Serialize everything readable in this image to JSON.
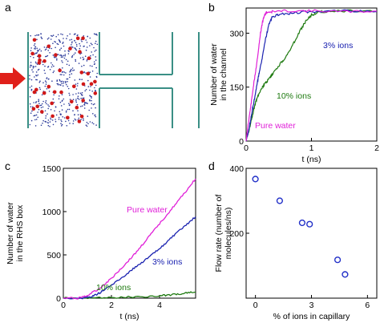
{
  "colors": {
    "pure_water": "#e020d8",
    "ions3": "#1a22b0",
    "ions10": "#1e7a10",
    "scatter": "#2230c8",
    "channel_wall": "#3a8f85",
    "arrow": "#e0201a"
  },
  "panels": {
    "a": {
      "letter": "a"
    },
    "b": {
      "letter": "b"
    },
    "c": {
      "letter": "c"
    },
    "d": {
      "letter": "d"
    }
  },
  "chart_data": [
    {
      "panel": "b",
      "type": "line",
      "xlabel": "t (ns)",
      "ylabel": [
        "Number of water",
        "in the channel"
      ],
      "xlim": [
        0,
        2
      ],
      "ylim": [
        0,
        370
      ],
      "xticks": [
        "0",
        "1",
        "2"
      ],
      "yticks": [
        "0",
        "150",
        "300"
      ],
      "series": [
        {
          "name": "Pure water",
          "x": [
            0,
            0.03,
            0.07,
            0.11,
            0.15,
            0.19,
            0.22,
            0.25,
            0.28,
            0.31,
            0.4,
            0.6,
            1.0,
            1.5,
            2.0
          ],
          "y": [
            0,
            45,
            95,
            150,
            200,
            255,
            300,
            330,
            350,
            358,
            360,
            362,
            362,
            360,
            361
          ]
        },
        {
          "name": "3% ions",
          "x": [
            0,
            0.04,
            0.08,
            0.12,
            0.16,
            0.2,
            0.25,
            0.3,
            0.35,
            0.4,
            0.5,
            0.7,
            1.0,
            1.5,
            2.0
          ],
          "y": [
            0,
            30,
            70,
            110,
            150,
            190,
            235,
            285,
            325,
            345,
            352,
            356,
            360,
            362,
            360
          ]
        },
        {
          "name": "10% ions",
          "x": [
            0,
            0.05,
            0.1,
            0.15,
            0.2,
            0.25,
            0.3,
            0.35,
            0.4,
            0.5,
            0.6,
            0.7,
            0.8,
            0.9,
            1.0,
            1.1,
            1.2,
            1.5,
            2.0
          ],
          "y": [
            0,
            35,
            75,
            110,
            135,
            150,
            162,
            172,
            185,
            210,
            232,
            262,
            298,
            330,
            350,
            358,
            360,
            362,
            361
          ]
        }
      ],
      "annotations": [
        "3% ions",
        "10% ions",
        "Pure water"
      ]
    },
    {
      "panel": "c",
      "type": "line",
      "xlabel": "t (ns)",
      "ylabel": [
        "Number of water",
        "in the RHS box"
      ],
      "xlim": [
        0,
        5.5
      ],
      "ylim": [
        0,
        1500
      ],
      "xticks": [
        "0",
        "2",
        "4"
      ],
      "yticks": [
        "0",
        "500",
        "1000",
        "1500"
      ],
      "series": [
        {
          "name": "Pure water",
          "x": [
            0,
            0.6,
            1,
            1.5,
            2,
            2.5,
            3,
            3.5,
            4,
            4.5,
            5,
            5.5
          ],
          "y": [
            0,
            0,
            30,
            110,
            230,
            370,
            520,
            690,
            860,
            1030,
            1200,
            1380
          ]
        },
        {
          "name": "3% ions",
          "x": [
            0,
            0.8,
            1.2,
            1.5,
            2,
            2.5,
            3,
            3.5,
            4,
            4.5,
            5,
            5.5
          ],
          "y": [
            0,
            0,
            20,
            60,
            150,
            250,
            360,
            460,
            570,
            700,
            820,
            940
          ]
        },
        {
          "name": "10% ions",
          "x": [
            0,
            1,
            2,
            3,
            4,
            4.5,
            5,
            5.5
          ],
          "y": [
            0,
            0,
            8,
            15,
            25,
            40,
            55,
            70
          ]
        }
      ],
      "annotations": [
        "Pure water",
        "3% ions",
        "10% ions"
      ]
    },
    {
      "panel": "d",
      "type": "scatter",
      "xlabel": "% of ions in capillary",
      "ylabel": [
        "Flow rate (number of",
        "molecules/ns)"
      ],
      "xlim": [
        -0.5,
        6.5
      ],
      "ylim": [
        0,
        400
      ],
      "xticks": [
        "0",
        "3",
        "6"
      ],
      "yticks": [
        "200",
        "400"
      ],
      "points": [
        {
          "x": 0,
          "y": 367
        },
        {
          "x": 1.3,
          "y": 300
        },
        {
          "x": 2.5,
          "y": 232
        },
        {
          "x": 2.9,
          "y": 228
        },
        {
          "x": 4.4,
          "y": 118
        },
        {
          "x": 4.8,
          "y": 73
        }
      ]
    }
  ]
}
